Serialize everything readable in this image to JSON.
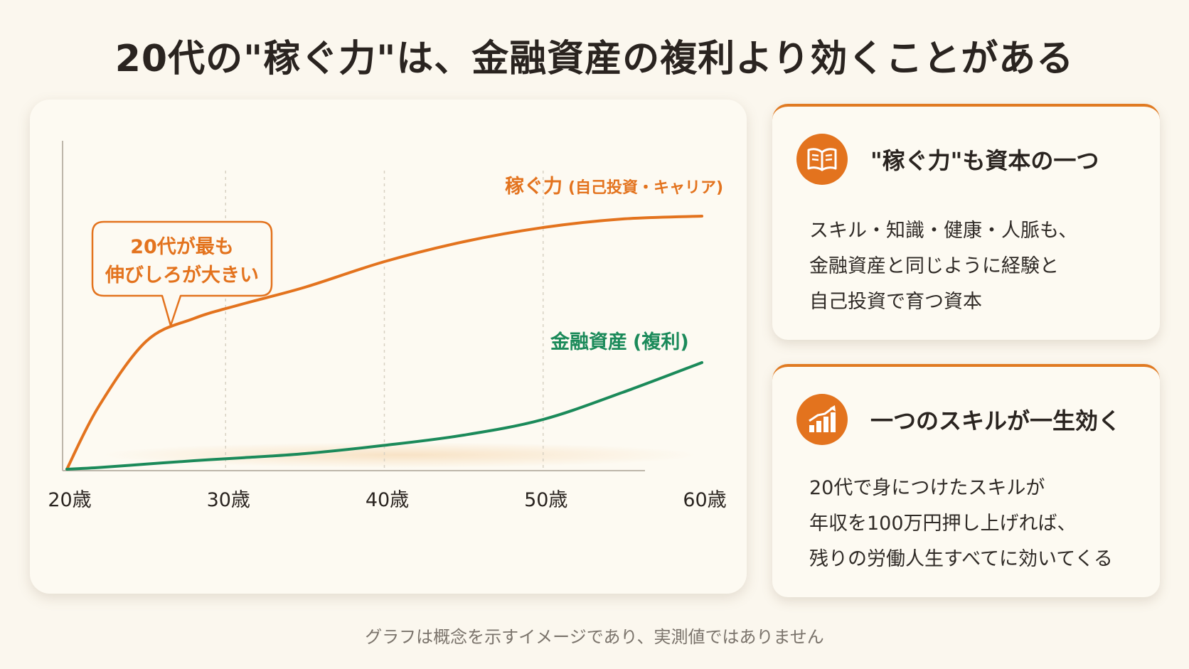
{
  "title": "20代の\"稼ぐ力\"は、金融資産の複利より効くことがある",
  "chart_data": {
    "type": "line",
    "x": [
      20,
      22,
      25,
      28,
      31,
      35,
      40,
      45,
      50,
      55,
      60
    ],
    "tick_labels": [
      "20歳",
      "30歳",
      "40歳",
      "50歳",
      "60歳"
    ],
    "tick_values": [
      20,
      30,
      40,
      50,
      60
    ],
    "xlim": [
      20,
      63
    ],
    "ylim": [
      0,
      100
    ],
    "grid": "vertical-dashed",
    "series": [
      {
        "name": "稼ぐ力",
        "name_suffix": "(自己投資・キャリア)",
        "color": "#e3731e",
        "values": [
          0,
          22,
          45,
          53,
          58,
          64,
          73,
          80,
          85,
          88,
          89
        ]
      },
      {
        "name": "金融資産",
        "name_suffix": "(複利)",
        "color": "#1b8a5a",
        "values": [
          0,
          0.6,
          1.8,
          3,
          4,
          5.5,
          8.4,
          12,
          17.5,
          27,
          37.5
        ]
      }
    ],
    "annotation": {
      "lines": [
        "20代が最も",
        "伸びしろが大きい"
      ],
      "color": "#e3731e"
    }
  },
  "cards": [
    {
      "icon": "book-icon",
      "heading": "\"稼ぐ力\"も資本の一つ",
      "lines": [
        "スキル・知識・健康・人脈も、",
        "金融資産と同じように経験と",
        "自己投資で育つ資本"
      ]
    },
    {
      "icon": "growth-chart-icon",
      "heading": "一つのスキルが一生効く",
      "lines": [
        "20代で身につけたスキルが",
        "年収を100万円押し上げれば、",
        "残りの労働人生すべてに効いてくる"
      ]
    }
  ],
  "footnote": "グラフは概念を示すイメージであり、実測値ではありません"
}
